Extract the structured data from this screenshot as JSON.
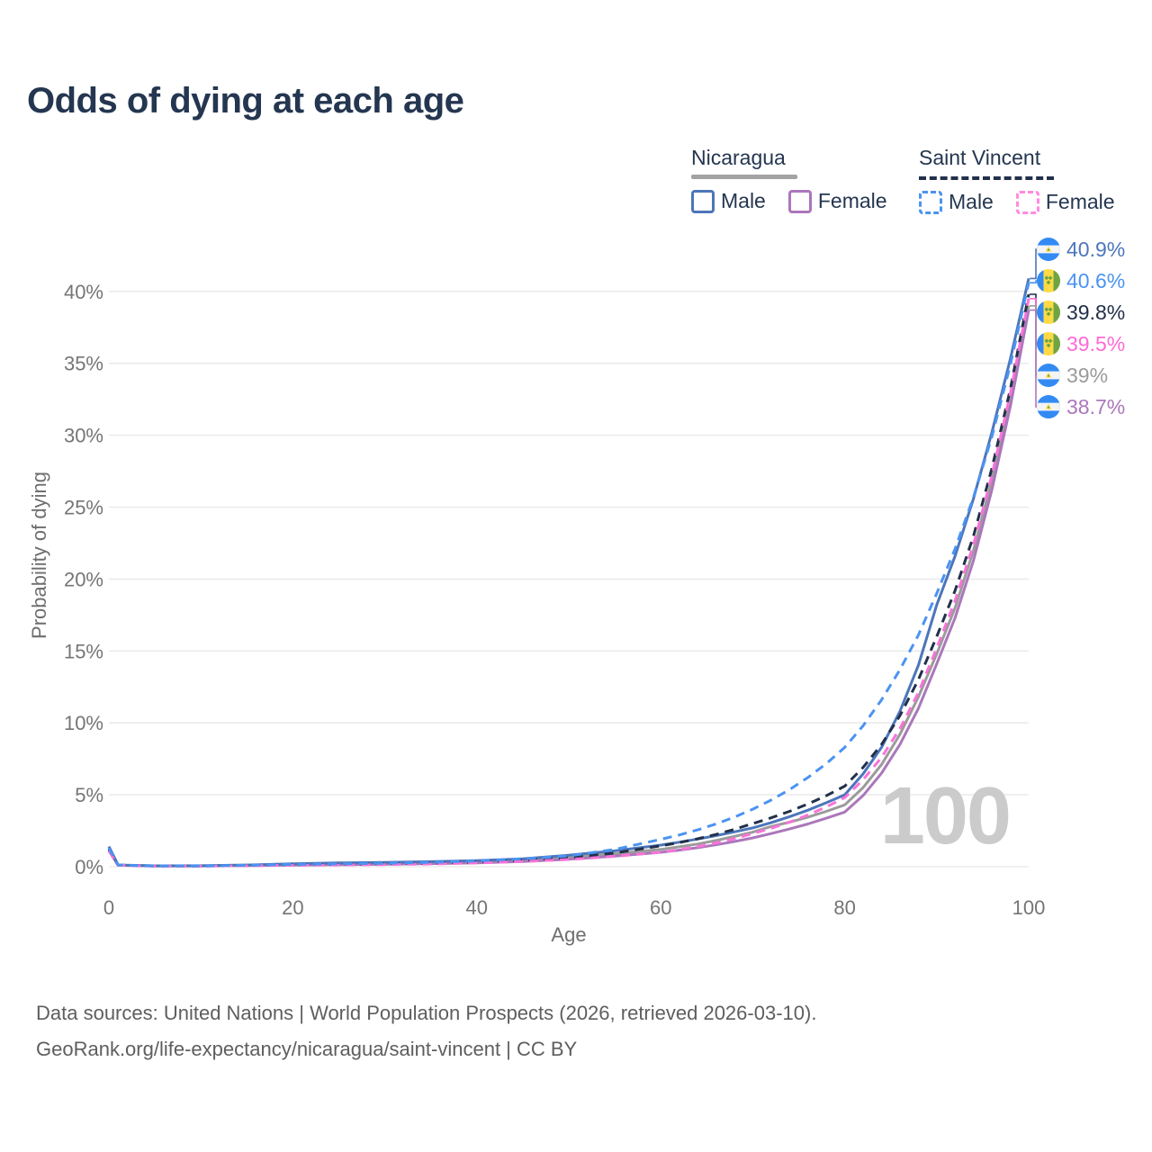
{
  "title": "Odds of dying at each age",
  "legend": {
    "groups": [
      {
        "name": "Nicaragua",
        "underline": "solid",
        "underline_color": "#a3a3a3",
        "items": [
          {
            "label": "Male",
            "color": "#4c76ba",
            "dashed": false
          },
          {
            "label": "Female",
            "color": "#ab77bb",
            "dashed": false
          }
        ]
      },
      {
        "name": "Saint Vincent",
        "underline": "dashed",
        "underline_color": "#22304a",
        "items": [
          {
            "label": "Male",
            "color": "#4b93f2",
            "dashed": true
          },
          {
            "label": "Female",
            "color": "#ff8ae0",
            "dashed": true
          }
        ]
      }
    ]
  },
  "watermark_age": "100",
  "end_labels": [
    {
      "value": "40.9%",
      "series": "Nicaragua Male",
      "flag": "nicaragua",
      "color": "#4c76ba",
      "end_percent": 40.9
    },
    {
      "value": "40.6%",
      "series": "Saint Vincent Male",
      "flag": "saint-vincent",
      "color": "#4b93f2",
      "end_percent": 40.6
    },
    {
      "value": "39.8%",
      "series": "Saint Vincent Both Sexes",
      "flag": "saint-vincent",
      "color": "#22304a",
      "end_percent": 39.8
    },
    {
      "value": "39.5%",
      "series": "Saint Vincent Female",
      "flag": "saint-vincent",
      "color": "#ff6ad5",
      "end_percent": 39.5
    },
    {
      "value": "39%",
      "series": "Nicaragua Both Sexes",
      "flag": "nicaragua",
      "color": "#9b9b9b",
      "end_percent": 39.0
    },
    {
      "value": "38.7%",
      "series": "Nicaragua Female",
      "flag": "nicaragua",
      "color": "#ab77bb",
      "end_percent": 38.7
    }
  ],
  "footer": {
    "line1": "Data sources: United Nations | World Population Prospects (2026, retrieved 2026-03-10).",
    "line2": "GeoRank.org/life-expectancy/nicaragua/saint-vincent | CC BY"
  },
  "colors": {
    "title_text": "#243650",
    "tick_text": "#757575",
    "grid": "#ebebeb",
    "watermark": "#cbcbcb",
    "footer_text": "#5e5e5e"
  },
  "chart_data": {
    "type": "line",
    "title": "Odds of dying at each age",
    "xlabel": "Age",
    "ylabel": "Probability of dying",
    "x_ticks": [
      0,
      20,
      40,
      60,
      80,
      100
    ],
    "y_ticks_percent": [
      0,
      5,
      10,
      15,
      20,
      25,
      30,
      35,
      40
    ],
    "xlim": [
      0,
      100
    ],
    "ylim_percent": [
      0,
      43.5
    ],
    "grid": true,
    "legend_position": "top-right",
    "ages": [
      0,
      1,
      5,
      10,
      15,
      20,
      25,
      30,
      35,
      40,
      45,
      50,
      55,
      60,
      62,
      64,
      66,
      68,
      70,
      72,
      74,
      76,
      78,
      80,
      82,
      84,
      86,
      88,
      90,
      92,
      94,
      96,
      98,
      100
    ],
    "series": [
      {
        "name": "Nicaragua Both Sexes",
        "country": "Nicaragua",
        "sex": "both",
        "color": "#9b9b9b",
        "dashed": false,
        "values_percent": [
          1.25,
          0.11,
          0.06,
          0.06,
          0.1,
          0.15,
          0.19,
          0.22,
          0.27,
          0.34,
          0.45,
          0.65,
          0.9,
          1.2,
          1.38,
          1.58,
          1.82,
          2.1,
          2.4,
          2.8,
          3.1,
          3.45,
          3.85,
          4.3,
          5.5,
          7.1,
          9.2,
          11.8,
          14.8,
          18.0,
          22.0,
          26.9,
          32.6,
          39.0
        ]
      },
      {
        "name": "Nicaragua Female",
        "country": "Nicaragua",
        "sex": "female",
        "color": "#ab77bb",
        "dashed": false,
        "values_percent": [
          1.1,
          0.1,
          0.05,
          0.05,
          0.08,
          0.11,
          0.14,
          0.17,
          0.21,
          0.27,
          0.36,
          0.52,
          0.73,
          1.0,
          1.15,
          1.32,
          1.52,
          1.75,
          2.0,
          2.3,
          2.62,
          2.97,
          3.37,
          3.8,
          4.95,
          6.5,
          8.5,
          11.0,
          14.1,
          17.3,
          21.3,
          26.2,
          32.0,
          38.7
        ]
      },
      {
        "name": "Nicaragua Male",
        "country": "Nicaragua",
        "sex": "male",
        "color": "#4c76ba",
        "dashed": false,
        "values_percent": [
          1.4,
          0.12,
          0.06,
          0.07,
          0.12,
          0.2,
          0.26,
          0.3,
          0.35,
          0.42,
          0.55,
          0.8,
          1.1,
          1.5,
          1.7,
          1.92,
          2.16,
          2.42,
          2.7,
          3.06,
          3.48,
          3.93,
          4.45,
          5.0,
          6.45,
          8.3,
          10.8,
          14.0,
          18.2,
          21.6,
          25.6,
          30.2,
          35.3,
          40.9
        ]
      },
      {
        "name": "Saint Vincent Both Sexes",
        "country": "Saint Vincent",
        "sex": "both",
        "color": "#22304a",
        "dashed": true,
        "values_percent": [
          1.2,
          0.11,
          0.05,
          0.05,
          0.09,
          0.14,
          0.17,
          0.2,
          0.25,
          0.33,
          0.45,
          0.62,
          0.95,
          1.45,
          1.68,
          1.94,
          2.24,
          2.6,
          3.0,
          3.4,
          3.85,
          4.36,
          4.94,
          5.6,
          6.9,
          8.5,
          10.5,
          13.0,
          16.0,
          19.2,
          23.0,
          27.7,
          33.2,
          39.8
        ]
      },
      {
        "name": "Saint Vincent Female",
        "country": "Saint Vincent",
        "sex": "female",
        "color": "#f973d8",
        "dashed": true,
        "values_percent": [
          1.1,
          0.1,
          0.05,
          0.05,
          0.07,
          0.1,
          0.12,
          0.15,
          0.19,
          0.26,
          0.36,
          0.5,
          0.72,
          1.0,
          1.18,
          1.4,
          1.65,
          1.95,
          2.3,
          2.67,
          3.1,
          3.6,
          4.16,
          4.8,
          6.05,
          7.6,
          9.6,
          12.1,
          15.2,
          18.5,
          22.4,
          27.2,
          32.9,
          39.5
        ]
      },
      {
        "name": "Saint Vincent Male",
        "country": "Saint Vincent",
        "sex": "male",
        "color": "#4b93f2",
        "dashed": true,
        "values_percent": [
          1.3,
          0.12,
          0.06,
          0.06,
          0.1,
          0.16,
          0.2,
          0.24,
          0.3,
          0.4,
          0.55,
          0.75,
          1.2,
          1.9,
          2.2,
          2.56,
          2.97,
          3.45,
          4.0,
          4.63,
          5.36,
          6.2,
          7.17,
          8.3,
          9.8,
          11.6,
          13.7,
          16.1,
          19.0,
          22.1,
          25.7,
          29.9,
          34.9,
          40.6
        ]
      }
    ]
  }
}
